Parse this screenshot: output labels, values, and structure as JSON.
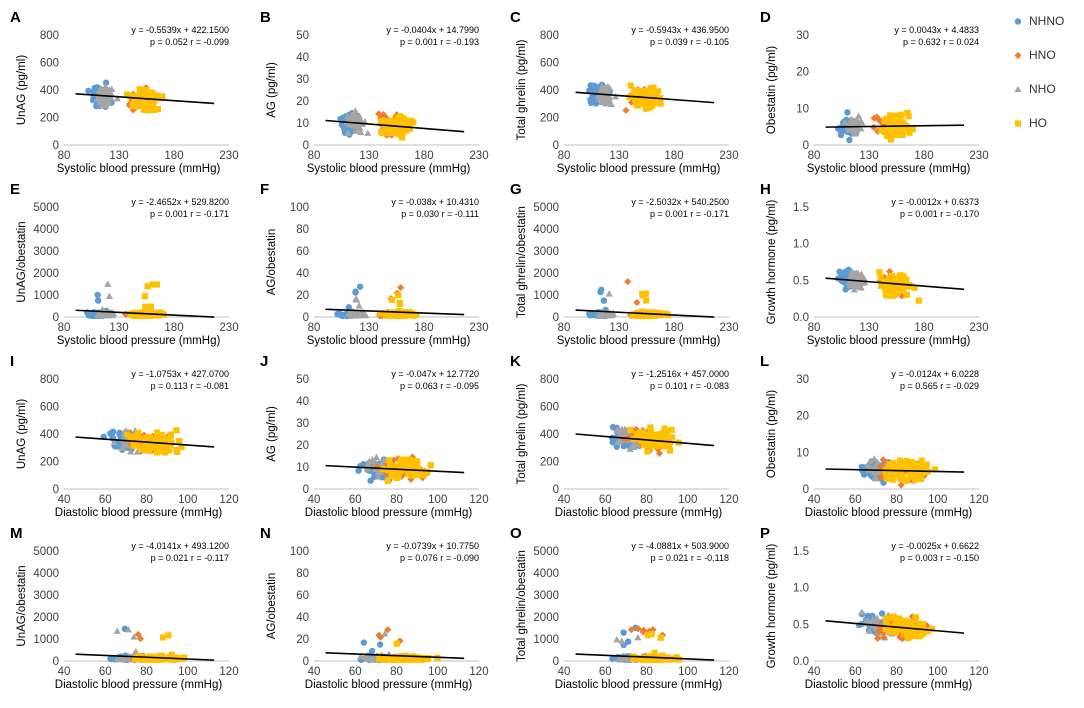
{
  "legend": [
    {
      "name": "NHNO",
      "color": "#5b9bd5",
      "marker": "circle"
    },
    {
      "name": "HNO",
      "color": "#ed7d31",
      "marker": "diamond"
    },
    {
      "name": "NHO",
      "color": "#a5a5a5",
      "marker": "triangle"
    },
    {
      "name": "HO",
      "color": "#ffc000",
      "marker": "square"
    }
  ],
  "chart_data": [
    {
      "letter": "A",
      "type": "scatter",
      "xlabel": "Systolic blood pressure (mmHg)",
      "ylabel": "UnAG (pg/ml)",
      "xlim": [
        80,
        230
      ],
      "ylim": [
        0,
        800
      ],
      "xticks": [
        80,
        130,
        180,
        230
      ],
      "yticks": [
        0,
        200,
        400,
        600,
        800
      ],
      "xticklabels": [
        "80",
        "130",
        "180",
        "230"
      ],
      "yticklabels": [
        "0",
        "200",
        "400",
        "600",
        "800"
      ],
      "equation": "y = -0.5539x + 422.1500",
      "stats": "p = 0.052 r = -0.099",
      "slope": -0.5539,
      "intercept": 422.15
    },
    {
      "letter": "B",
      "type": "scatter",
      "xlabel": "Systolic blood pressure (mmHg)",
      "ylabel": "AG (pg/ml)",
      "xlim": [
        80,
        230
      ],
      "ylim": [
        0,
        50
      ],
      "xticks": [
        80,
        130,
        180,
        230
      ],
      "yticks": [
        0,
        10,
        20,
        30,
        40,
        50
      ],
      "xticklabels": [
        "80",
        "130",
        "180",
        "230"
      ],
      "yticklabels": [
        "0",
        "10",
        "20",
        "30",
        "40",
        "50"
      ],
      "equation": "y = -0.0404x + 14.7990",
      "stats": "p = 0.001 r = -0.193",
      "slope": -0.0404,
      "intercept": 14.799
    },
    {
      "letter": "C",
      "type": "scatter",
      "xlabel": "Systolic blood pressure (mmHg)",
      "ylabel": "Total ghrelin (pg/ml)",
      "xlim": [
        80,
        230
      ],
      "ylim": [
        0,
        800
      ],
      "xticks": [
        80,
        130,
        180,
        230
      ],
      "yticks": [
        0,
        200,
        400,
        600,
        800
      ],
      "xticklabels": [
        "80",
        "130",
        "180",
        "230"
      ],
      "yticklabels": [
        "0",
        "200",
        "400",
        "600",
        "800"
      ],
      "equation": "y = -0.5943x + 436.9500",
      "stats": "p = 0.039 r = -0.105",
      "slope": -0.5943,
      "intercept": 436.95
    },
    {
      "letter": "D",
      "type": "scatter",
      "xlabel": "Systolic blood pressure (mmHg)",
      "ylabel": "Obestatin (pg/ml)",
      "xlim": [
        80,
        230
      ],
      "ylim": [
        0,
        30
      ],
      "xticks": [
        80,
        130,
        180,
        230
      ],
      "yticks": [
        0,
        10,
        20,
        30
      ],
      "xticklabels": [
        "80",
        "130",
        "180",
        "230"
      ],
      "yticklabels": [
        "0",
        "10",
        "20",
        "30"
      ],
      "equation": "y = 0.0043x + 4.4833",
      "stats": "p = 0.632 r = 0.024",
      "slope": 0.0043,
      "intercept": 4.4833
    },
    {
      "letter": "E",
      "type": "scatter",
      "xlabel": "Systolic blood pressure (mmHg)",
      "ylabel": "UnAG/obestatin",
      "xlim": [
        80,
        230
      ],
      "ylim": [
        0,
        5000
      ],
      "xticks": [
        80,
        130,
        180,
        230
      ],
      "yticks": [
        0,
        1000,
        2000,
        3000,
        4000,
        5000
      ],
      "xticklabels": [
        "80",
        "130",
        "180",
        "230"
      ],
      "yticklabels": [
        "0",
        "1000",
        "2000",
        "3000",
        "4000",
        "5000"
      ],
      "equation": "y = -2.4652x + 529.8200",
      "stats": "p = 0.001 r = -0.171",
      "slope": -2.4652,
      "intercept": 529.82
    },
    {
      "letter": "F",
      "type": "scatter",
      "xlabel": "Systolic blood pressure (mmHg)",
      "ylabel": "AG/obestatin",
      "xlim": [
        80,
        230
      ],
      "ylim": [
        0,
        100
      ],
      "xticks": [
        80,
        130,
        180,
        230
      ],
      "yticks": [
        0,
        20,
        40,
        60,
        80,
        100
      ],
      "xticklabels": [
        "80",
        "130",
        "180",
        "230"
      ],
      "yticklabels": [
        "0",
        "20",
        "40",
        "60",
        "80",
        "100"
      ],
      "equation": "y = -0.038x + 10.4310",
      "stats": "p = 0.030 r = -0.111",
      "slope": -0.038,
      "intercept": 10.431
    },
    {
      "letter": "G",
      "type": "scatter",
      "xlabel": "Systolic blood pressure (mmHg)",
      "ylabel": "Total ghrelin/obestatin",
      "xlim": [
        80,
        230
      ],
      "ylim": [
        0,
        5000
      ],
      "xticks": [
        80,
        130,
        180,
        230
      ],
      "yticks": [
        0,
        1000,
        2000,
        3000,
        4000,
        5000
      ],
      "xticklabels": [
        "80",
        "130",
        "180",
        "230"
      ],
      "yticklabels": [
        "0",
        "1000",
        "2000",
        "3000",
        "4000",
        "5000"
      ],
      "equation": "y = -2.5032x + 540.2500",
      "stats": "p = 0.001 r = -0.171",
      "slope": -2.5032,
      "intercept": 540.25
    },
    {
      "letter": "H",
      "type": "scatter",
      "xlabel": "Systolic blood pressure (mmHg)",
      "ylabel": "Growth hormone (pg/ml)",
      "xlim": [
        80,
        230
      ],
      "ylim": [
        0,
        1.5
      ],
      "xticks": [
        80,
        130,
        180,
        230
      ],
      "yticks": [
        0,
        0.5,
        1.0,
        1.5
      ],
      "xticklabels": [
        "80",
        "130",
        "180",
        "230"
      ],
      "yticklabels": [
        "0.0",
        "0.5",
        "1.0",
        "1.5"
      ],
      "equation": "y = -0.0012x + 0.6373",
      "stats": "p = 0.001 r = -0.170",
      "slope": -0.0012,
      "intercept": 0.6373
    },
    {
      "letter": "I",
      "type": "scatter",
      "xlabel": "Diastolic blood pressure (mmHg)",
      "ylabel": "UnAG (pg/ml)",
      "xlim": [
        40,
        120
      ],
      "ylim": [
        0,
        800
      ],
      "xticks": [
        40,
        60,
        80,
        100,
        120
      ],
      "yticks": [
        0,
        200,
        400,
        600,
        800
      ],
      "xticklabels": [
        "40",
        "60",
        "80",
        "100",
        "120"
      ],
      "yticklabels": [
        "0",
        "200",
        "400",
        "600",
        "800"
      ],
      "equation": "y = -1.0753x + 427.0700",
      "stats": "p = 0.113 r = -0.081",
      "slope": -1.0753,
      "intercept": 427.07
    },
    {
      "letter": "J",
      "type": "scatter",
      "xlabel": "Diastolic blood pressure (mmHg)",
      "ylabel": "AG (pg/ml)",
      "xlim": [
        40,
        120
      ],
      "ylim": [
        0,
        50
      ],
      "xticks": [
        40,
        60,
        80,
        100,
        120
      ],
      "yticks": [
        0,
        10,
        20,
        30,
        40,
        50
      ],
      "xticklabels": [
        "40",
        "60",
        "80",
        "100",
        "120"
      ],
      "yticklabels": [
        "0",
        "10",
        "20",
        "30",
        "40",
        "50"
      ],
      "equation": "y = -0.047x + 12.7720",
      "stats": "p = 0.063 r = -0.095",
      "slope": -0.047,
      "intercept": 12.772
    },
    {
      "letter": "K",
      "type": "scatter",
      "xlabel": "Diastolic blood pressure (mmHg)",
      "ylabel": "Total ghrelin (pg/ml)",
      "xlim": [
        40,
        120
      ],
      "ylim": [
        0,
        800
      ],
      "xticks": [
        40,
        60,
        80,
        100,
        120
      ],
      "yticks": [
        0,
        200,
        400,
        600,
        800
      ],
      "xticklabels": [
        "40",
        "60",
        "80",
        "100",
        "120"
      ],
      "yticklabels": [
        "0",
        "200",
        "400",
        "600",
        "800"
      ],
      "equation": "y = -1.2516x + 457.0000",
      "stats": "p = 0.101 r = -0.083",
      "slope": -1.2516,
      "intercept": 457.0
    },
    {
      "letter": "L",
      "type": "scatter",
      "xlabel": "Diastolic blood pressure (mmHg)",
      "ylabel": "Obestatin (pg/ml)",
      "xlim": [
        40,
        120
      ],
      "ylim": [
        0,
        30
      ],
      "xticks": [
        40,
        60,
        80,
        100,
        120
      ],
      "yticks": [
        0,
        10,
        20,
        30
      ],
      "xticklabels": [
        "40",
        "60",
        "80",
        "100",
        "120"
      ],
      "yticklabels": [
        "0",
        "10",
        "20",
        "30"
      ],
      "equation": "y = -0.0124x + 6.0228",
      "stats": "p = 0.565 r = -0.029",
      "slope": -0.0124,
      "intercept": 6.0228
    },
    {
      "letter": "M",
      "type": "scatter",
      "xlabel": "Diastolic blood pressure (mmHg)",
      "ylabel": "UnAG/obestatin",
      "xlim": [
        40,
        120
      ],
      "ylim": [
        0,
        5000
      ],
      "xticks": [
        40,
        60,
        80,
        100,
        120
      ],
      "yticks": [
        0,
        1000,
        2000,
        3000,
        4000,
        5000
      ],
      "xticklabels": [
        "40",
        "60",
        "80",
        "100",
        "120"
      ],
      "yticklabels": [
        "0",
        "1000",
        "2000",
        "3000",
        "4000",
        "5000"
      ],
      "equation": "y = -4.0141x + 493.1200",
      "stats": "p = 0.021 r = -0.117",
      "slope": -4.0141,
      "intercept": 493.12
    },
    {
      "letter": "N",
      "type": "scatter",
      "xlabel": "Diastolic blood pressure (mmHg)",
      "ylabel": "AG/obestatin",
      "xlim": [
        40,
        120
      ],
      "ylim": [
        0,
        100
      ],
      "xticks": [
        40,
        60,
        80,
        100,
        120
      ],
      "yticks": [
        0,
        20,
        40,
        60,
        80,
        100
      ],
      "xticklabels": [
        "40",
        "60",
        "80",
        "100",
        "120"
      ],
      "yticklabels": [
        "0",
        "20",
        "40",
        "60",
        "80",
        "100"
      ],
      "equation": "y = -0.0739x + 10.7750",
      "stats": "p = 0.076 r = -0.090",
      "slope": -0.0739,
      "intercept": 10.775
    },
    {
      "letter": "O",
      "type": "scatter",
      "xlabel": "Diastolic blood pressure (mmHg)",
      "ylabel": "Total ghrelin/obestatin",
      "xlim": [
        40,
        120
      ],
      "ylim": [
        0,
        5000
      ],
      "xticks": [
        40,
        60,
        80,
        100,
        120
      ],
      "yticks": [
        0,
        1000,
        2000,
        3000,
        4000,
        5000
      ],
      "xticklabels": [
        "40",
        "60",
        "80",
        "100",
        "120"
      ],
      "yticklabels": [
        "0",
        "1000",
        "2000",
        "3000",
        "4000",
        "5000"
      ],
      "equation": "y = -4.0881x + 503.9000",
      "stats": "p = 0.021 r = -0.118",
      "slope": -4.0881,
      "intercept": 503.9
    },
    {
      "letter": "P",
      "type": "scatter",
      "xlabel": "Diastolic blood pressure (mmHg)",
      "ylabel": "Growth hormone (pg/ml)",
      "xlim": [
        40,
        120
      ],
      "ylim": [
        0,
        1.5
      ],
      "xticks": [
        40,
        60,
        80,
        100,
        120
      ],
      "yticks": [
        0,
        0.5,
        1.0,
        1.5
      ],
      "xticklabels": [
        "40",
        "60",
        "80",
        "100",
        "120"
      ],
      "yticklabels": [
        "0.0",
        "0.5",
        "1.0",
        "1.5"
      ],
      "equation": "y = -0.0025x + 0.6622",
      "stats": "p = 0.003 r = -0.150",
      "slope": -0.0025,
      "intercept": 0.6622
    }
  ]
}
